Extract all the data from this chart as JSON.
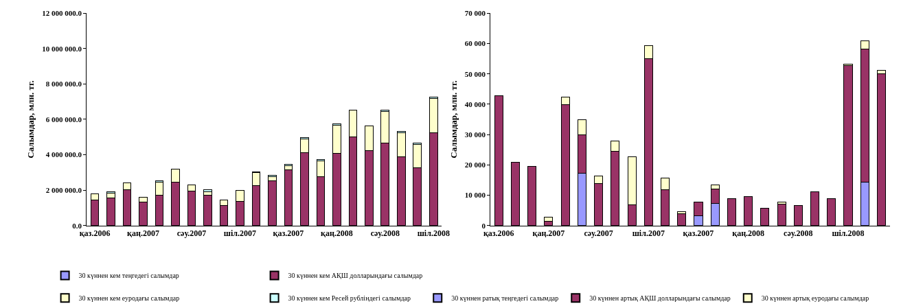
{
  "chart_data": [
    {
      "type": "bar",
      "stacked": true,
      "ylabel": "Салымдар, млн. тг.",
      "legend": "bottom",
      "grid": false,
      "categories": [
        "қаз.2006",
        null,
        null,
        "қаң.2007",
        null,
        null,
        "сәу.2007",
        null,
        null,
        "шіл.2007",
        null,
        null,
        "қаз.2007",
        null,
        null,
        "қаң.2008",
        null,
        null,
        "сәу.2008",
        null,
        null,
        "шіл.2008"
      ],
      "ylim": [
        0,
        12000000
      ],
      "yticks": [
        {
          "value": 0,
          "label": "0.0"
        },
        {
          "value": 2000000,
          "label": "2 000 000.0"
        },
        {
          "value": 4000000,
          "label": "4 000 000.0"
        },
        {
          "value": 6000000,
          "label": "6 000 000.0"
        },
        {
          "value": 8000000,
          "label": "8 000 000.0"
        },
        {
          "value": 10000000,
          "label": "10 000 000.0"
        },
        {
          "value": 12000000,
          "label": "12 000 000.0"
        }
      ],
      "series": [
        {
          "name": "30 күннен кем теңгедегі салымдар",
          "color": "#9999ff",
          "values": [
            0,
            0,
            null,
            0,
            0,
            0,
            0,
            0,
            0,
            0,
            0,
            0,
            0,
            0,
            0,
            0,
            0,
            0,
            0,
            null,
            null,
            null
          ]
        },
        {
          "name": "30 күннен кем АҚШ долларындағы салымдар",
          "color": "#993366",
          "values": [
            1440000,
            1540000,
            2030000,
            1310000,
            1700000,
            2460000,
            1960000,
            1700000,
            1150000,
            1360000,
            2260000,
            2510000,
            3150000,
            4110000,
            2750000,
            4070000,
            5020000,
            4220000,
            4680000,
            3880000,
            3270000,
            5230000
          ]
        },
        {
          "name": "30 күннен кем еуродағы салымдар",
          "color": "#ffffcc",
          "values": [
            360000,
            300000,
            370000,
            290000,
            760000,
            710000,
            350000,
            210000,
            300000,
            640000,
            720000,
            240000,
            240000,
            800000,
            900000,
            1600000,
            1510000,
            1410000,
            1760000,
            1350000,
            1300000,
            1940000
          ]
        },
        {
          "name": "30 күннен кем Ресей рубліндегі салымдар",
          "color": "#ccffff",
          "values": [
            0,
            60000,
            0,
            0,
            60000,
            0,
            0,
            110000,
            0,
            0,
            60000,
            80000,
            80000,
            60000,
            70000,
            80000,
            0,
            0,
            90000,
            80000,
            80000,
            90000
          ]
        }
      ]
    },
    {
      "type": "bar",
      "stacked": true,
      "ylabel": "Салымдар, млн. тг.",
      "legend": "bottom",
      "grid": false,
      "categories": [
        "қаз.2006",
        null,
        null,
        "қаң.2007",
        null,
        null,
        "сәу.2007",
        null,
        null,
        "шіл.2007",
        null,
        null,
        "қаз.2007",
        null,
        null,
        "қаң.2008",
        null,
        null,
        "сәу.2008",
        null,
        null,
        "шіл.2008",
        null,
        null
      ],
      "ylim": [
        0,
        70000
      ],
      "yticks": [
        0,
        {
          "value": 10000,
          "label": "10 000"
        },
        {
          "value": 20000,
          "label": "20 000"
        },
        {
          "value": 30000,
          "label": "30 000"
        },
        {
          "value": 40000,
          "label": "40 000"
        },
        {
          "value": 50000,
          "label": "50 000"
        },
        {
          "value": 60000,
          "label": "60 000"
        },
        {
          "value": 70000,
          "label": "70 000"
        }
      ],
      "series": [
        {
          "name": "30 күннен ратық теңгедегі салымдар",
          "color": "#9999ff",
          "values": [
            0,
            0,
            0,
            0,
            0,
            17300,
            0,
            0,
            0,
            0,
            0,
            0,
            3100,
            7200,
            0,
            0,
            0,
            0,
            0,
            0,
            0,
            0,
            14300,
            0
          ]
        },
        {
          "name": "30 күннен артық АҚШ долларындағы салымдар",
          "color": "#993366",
          "values": [
            42700,
            20800,
            19400,
            1400,
            39900,
            12700,
            13800,
            24500,
            6800,
            55100,
            11800,
            3900,
            4700,
            4800,
            8900,
            9500,
            5600,
            7100,
            6500,
            11200,
            8800,
            52800,
            43800,
            50000
          ]
        },
        {
          "name": "30 күннен артық еуродағы салымдар",
          "color": "#ffffcc",
          "values": [
            0,
            0,
            0,
            1400,
            2500,
            4900,
            2500,
            3300,
            15900,
            4300,
            3900,
            700,
            0,
            1500,
            0,
            0,
            0,
            700,
            0,
            0,
            0,
            400,
            2700,
            1200
          ]
        }
      ]
    }
  ]
}
